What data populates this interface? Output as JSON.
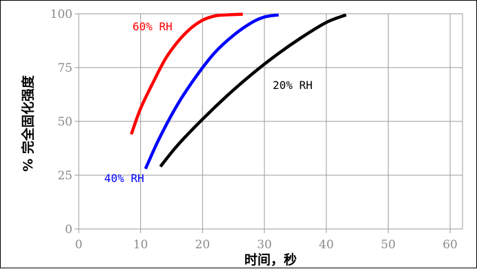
{
  "chart_data": {
    "type": "line",
    "title": "",
    "xlabel": "时间，秒",
    "ylabel": "% 完全固化强度",
    "xlim": [
      0,
      62
    ],
    "ylim": [
      0,
      100
    ],
    "xticks": [
      "0",
      "10",
      "20",
      "30",
      "40",
      "50",
      "60"
    ],
    "yticks": [
      "0",
      "25",
      "50",
      "75",
      "100"
    ],
    "grid": true,
    "series": [
      {
        "name": "60% RH",
        "color": "#ff0000",
        "x": [
          8.5,
          10,
          12,
          14,
          16,
          18,
          20,
          22,
          24,
          26.5
        ],
        "y": [
          44,
          56,
          68,
          79,
          87,
          93,
          97,
          99,
          99.5,
          99.8
        ]
      },
      {
        "name": "40% RH",
        "color": "#0000ff",
        "x": [
          10.8,
          13,
          16,
          19,
          22,
          25,
          28,
          30,
          32.3
        ],
        "y": [
          28,
          42,
          58,
          71,
          82,
          90,
          96,
          98.5,
          99.5
        ]
      },
      {
        "name": "20% RH",
        "color": "#000000",
        "x": [
          13.2,
          16,
          20,
          24,
          28,
          32,
          36,
          40,
          43.2
        ],
        "y": [
          29,
          39,
          51,
          62,
          72,
          81,
          89,
          96,
          99.5
        ]
      }
    ]
  }
}
